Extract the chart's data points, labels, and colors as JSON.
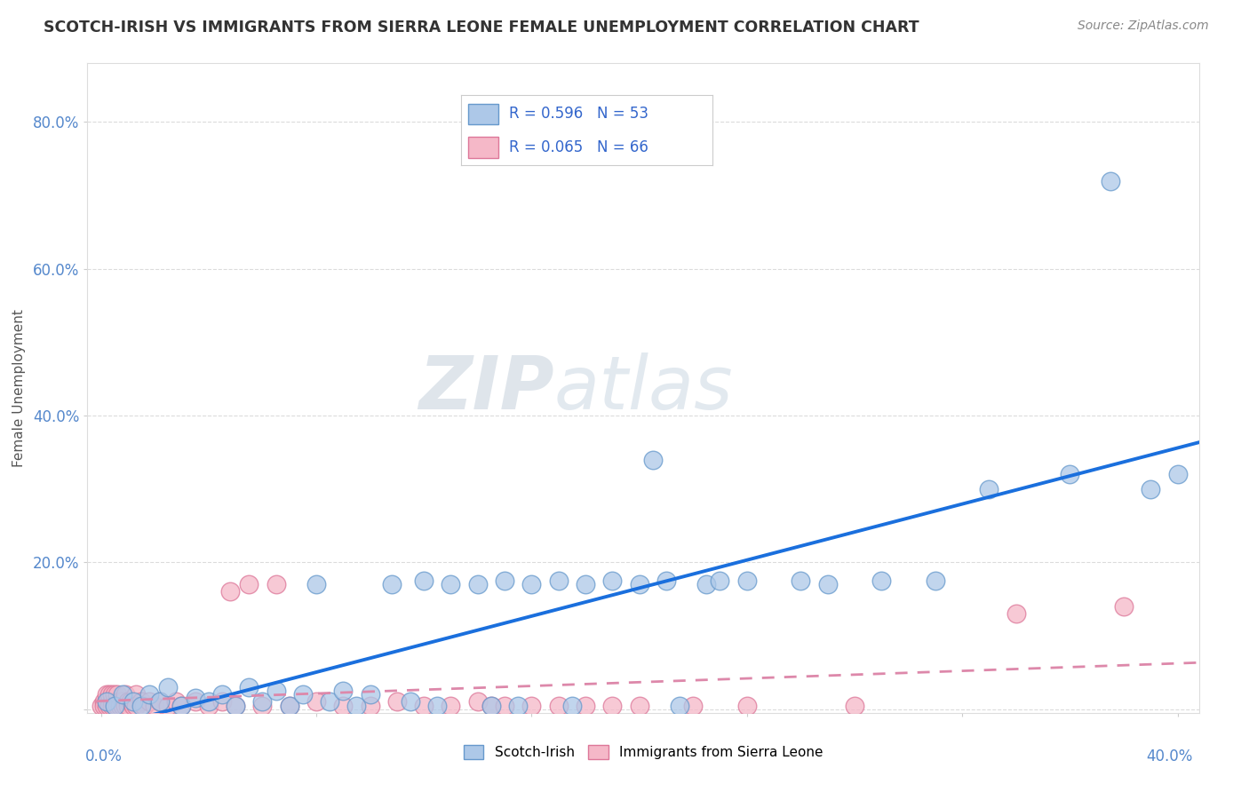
{
  "title": "SCOTCH-IRISH VS IMMIGRANTS FROM SIERRA LEONE FEMALE UNEMPLOYMENT CORRELATION CHART",
  "source": "Source: ZipAtlas.com",
  "ylabel": "Female Unemployment",
  "y_ticks": [
    0.0,
    0.2,
    0.4,
    0.6,
    0.8
  ],
  "y_tick_labels": [
    "",
    "20.0%",
    "40.0%",
    "60.0%",
    "80.0%"
  ],
  "x_range": [
    0.0,
    0.4
  ],
  "y_range": [
    0.0,
    0.88
  ],
  "scotch_irish_R": 0.596,
  "scotch_irish_N": 53,
  "sierra_leone_R": 0.065,
  "sierra_leone_N": 66,
  "scotch_irish_color": "#adc8e8",
  "scotch_irish_edge": "#6699cc",
  "sierra_leone_color": "#f5b8c8",
  "sierra_leone_edge": "#dd7799",
  "trend_blue": "#1a6fdd",
  "trend_pink": "#dd88aa",
  "background": "#ffffff",
  "scotch_irish_points": [
    [
      0.002,
      0.01
    ],
    [
      0.005,
      0.005
    ],
    [
      0.008,
      0.02
    ],
    [
      0.012,
      0.01
    ],
    [
      0.015,
      0.005
    ],
    [
      0.018,
      0.02
    ],
    [
      0.022,
      0.01
    ],
    [
      0.025,
      0.03
    ],
    [
      0.03,
      0.005
    ],
    [
      0.035,
      0.015
    ],
    [
      0.04,
      0.01
    ],
    [
      0.045,
      0.02
    ],
    [
      0.05,
      0.005
    ],
    [
      0.055,
      0.03
    ],
    [
      0.06,
      0.01
    ],
    [
      0.065,
      0.025
    ],
    [
      0.07,
      0.005
    ],
    [
      0.075,
      0.02
    ],
    [
      0.08,
      0.17
    ],
    [
      0.085,
      0.01
    ],
    [
      0.09,
      0.025
    ],
    [
      0.095,
      0.005
    ],
    [
      0.1,
      0.02
    ],
    [
      0.108,
      0.17
    ],
    [
      0.115,
      0.01
    ],
    [
      0.12,
      0.175
    ],
    [
      0.125,
      0.005
    ],
    [
      0.13,
      0.17
    ],
    [
      0.14,
      0.17
    ],
    [
      0.145,
      0.005
    ],
    [
      0.15,
      0.175
    ],
    [
      0.155,
      0.005
    ],
    [
      0.16,
      0.17
    ],
    [
      0.17,
      0.175
    ],
    [
      0.175,
      0.005
    ],
    [
      0.18,
      0.17
    ],
    [
      0.19,
      0.175
    ],
    [
      0.2,
      0.17
    ],
    [
      0.205,
      0.34
    ],
    [
      0.21,
      0.175
    ],
    [
      0.215,
      0.005
    ],
    [
      0.225,
      0.17
    ],
    [
      0.23,
      0.175
    ],
    [
      0.24,
      0.175
    ],
    [
      0.26,
      0.175
    ],
    [
      0.27,
      0.17
    ],
    [
      0.29,
      0.175
    ],
    [
      0.31,
      0.175
    ],
    [
      0.33,
      0.3
    ],
    [
      0.36,
      0.32
    ],
    [
      0.375,
      0.72
    ],
    [
      0.39,
      0.3
    ],
    [
      0.4,
      0.32
    ]
  ],
  "sierra_leone_points": [
    [
      0.0,
      0.005
    ],
    [
      0.001,
      0.01
    ],
    [
      0.001,
      0.005
    ],
    [
      0.002,
      0.01
    ],
    [
      0.002,
      0.02
    ],
    [
      0.002,
      0.005
    ],
    [
      0.003,
      0.01
    ],
    [
      0.003,
      0.02
    ],
    [
      0.003,
      0.005
    ],
    [
      0.004,
      0.01
    ],
    [
      0.004,
      0.02
    ],
    [
      0.004,
      0.005
    ],
    [
      0.005,
      0.01
    ],
    [
      0.005,
      0.02
    ],
    [
      0.005,
      0.005
    ],
    [
      0.006,
      0.01
    ],
    [
      0.006,
      0.02
    ],
    [
      0.006,
      0.005
    ],
    [
      0.007,
      0.01
    ],
    [
      0.007,
      0.005
    ],
    [
      0.008,
      0.01
    ],
    [
      0.008,
      0.005
    ],
    [
      0.009,
      0.02
    ],
    [
      0.009,
      0.005
    ],
    [
      0.01,
      0.01
    ],
    [
      0.01,
      0.005
    ],
    [
      0.011,
      0.01
    ],
    [
      0.012,
      0.005
    ],
    [
      0.013,
      0.02
    ],
    [
      0.013,
      0.005
    ],
    [
      0.015,
      0.01
    ],
    [
      0.016,
      0.005
    ],
    [
      0.018,
      0.01
    ],
    [
      0.02,
      0.005
    ],
    [
      0.022,
      0.01
    ],
    [
      0.025,
      0.005
    ],
    [
      0.028,
      0.01
    ],
    [
      0.03,
      0.005
    ],
    [
      0.035,
      0.01
    ],
    [
      0.04,
      0.005
    ],
    [
      0.045,
      0.01
    ],
    [
      0.048,
      0.16
    ],
    [
      0.05,
      0.005
    ],
    [
      0.055,
      0.17
    ],
    [
      0.06,
      0.005
    ],
    [
      0.065,
      0.17
    ],
    [
      0.07,
      0.005
    ],
    [
      0.08,
      0.01
    ],
    [
      0.09,
      0.005
    ],
    [
      0.1,
      0.005
    ],
    [
      0.11,
      0.01
    ],
    [
      0.12,
      0.005
    ],
    [
      0.13,
      0.005
    ],
    [
      0.14,
      0.01
    ],
    [
      0.145,
      0.005
    ],
    [
      0.15,
      0.005
    ],
    [
      0.16,
      0.005
    ],
    [
      0.17,
      0.005
    ],
    [
      0.18,
      0.005
    ],
    [
      0.19,
      0.005
    ],
    [
      0.2,
      0.005
    ],
    [
      0.22,
      0.005
    ],
    [
      0.24,
      0.005
    ],
    [
      0.28,
      0.005
    ],
    [
      0.34,
      0.13
    ],
    [
      0.38,
      0.14
    ]
  ]
}
